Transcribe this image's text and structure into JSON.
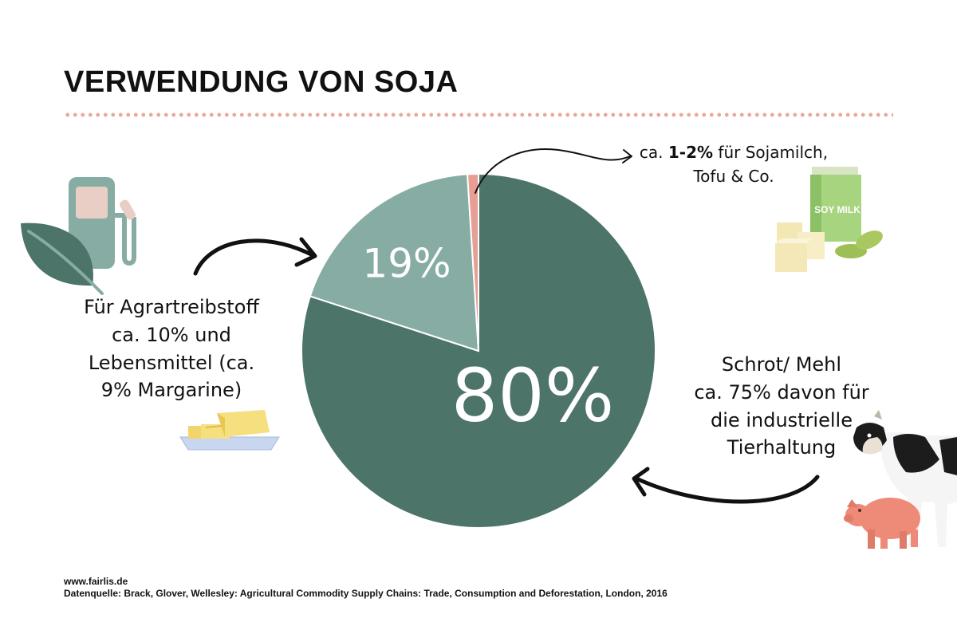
{
  "title": "VERWENDUNG VON SOJA",
  "chart_data": {
    "type": "pie",
    "slices": [
      {
        "label": "80%",
        "value": 80,
        "color": "#4c7469"
      },
      {
        "label": "19%",
        "value": 19,
        "color": "#86aca4"
      },
      {
        "label": "",
        "value": 1,
        "color": "#e79e94"
      }
    ]
  },
  "annotations": {
    "left": [
      "Für Agrartreibstoff",
      "ca. 10% und",
      "Lebensmittel (ca.",
      "9% Margarine)"
    ],
    "right": [
      "Schrot/ Mehl",
      "ca. 75% davon für",
      "die industrielle",
      "Tierhaltung"
    ],
    "top": {
      "prefix": "ca. ",
      "bold": "1-2%",
      "line1_suffix": " für Sojamilch,",
      "line2": "Tofu & Co."
    }
  },
  "icons": {
    "fuel": "fuel-pump-icon",
    "leaf": "leaf-icon",
    "butter": "butter-icon",
    "soymilk": "soy-milk-carton-icon",
    "soymilk_text": "SOY MILK",
    "tofu": "tofu-icon",
    "soybeans": "soybean-icon",
    "cow": "cow-icon",
    "pig": "pig-icon"
  },
  "footer": {
    "website": "www.fairlis.de",
    "source": "Datenquelle: Brack, Glover, Wellesley: Agricultural Commodity Supply Chains: Trade, Consumption and Deforestation, London, 2016"
  }
}
